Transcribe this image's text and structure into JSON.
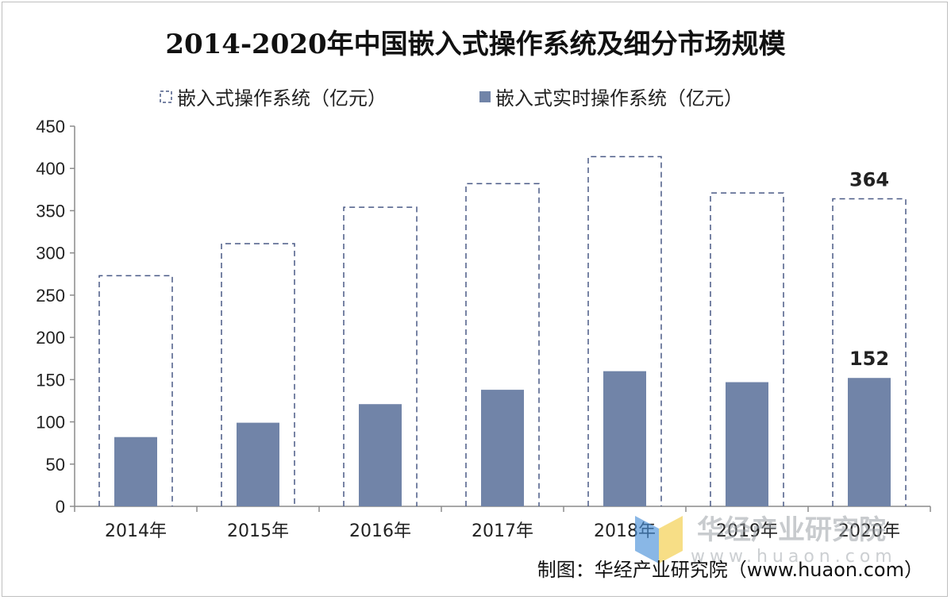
{
  "chart_data": {
    "type": "bar",
    "title": "2014-2020年中国嵌入式操作系统及细分市场规模",
    "categories": [
      "2014年",
      "2015年",
      "2016年",
      "2017年",
      "2018年",
      "2019年",
      "2020年"
    ],
    "series": [
      {
        "name": "嵌入式操作系统（亿元）",
        "values": [
          273,
          311,
          354,
          382,
          414,
          371,
          364
        ],
        "style": "dashed-outline",
        "color": "#4a5a86"
      },
      {
        "name": "嵌入式实时操作系统（亿元）",
        "values": [
          82,
          99,
          121,
          138,
          160,
          147,
          152
        ],
        "style": "filled",
        "color": "#7184a8"
      }
    ],
    "data_labels": [
      {
        "series": 0,
        "category": "2020年",
        "text": "364"
      },
      {
        "series": 1,
        "category": "2020年",
        "text": "152"
      }
    ],
    "yticks": [
      "0",
      "50",
      "100",
      "150",
      "200",
      "250",
      "300",
      "350",
      "400",
      "450"
    ],
    "ylim": [
      0,
      450
    ],
    "xlabel": "",
    "ylabel": "",
    "legend_position": "top",
    "grid": false
  },
  "source": "制图：华经产业研究院（www.huaon.com）",
  "watermark": {
    "text": "华经产业研究院",
    "url": "www.huaon.com"
  },
  "colors": {
    "filled_bar": "#7184a8",
    "dashed_outline": "#4a5a86",
    "axis": "#8c8c8c",
    "logo_yellow": "#f4d35e",
    "logo_blue": "#4a90d9"
  }
}
